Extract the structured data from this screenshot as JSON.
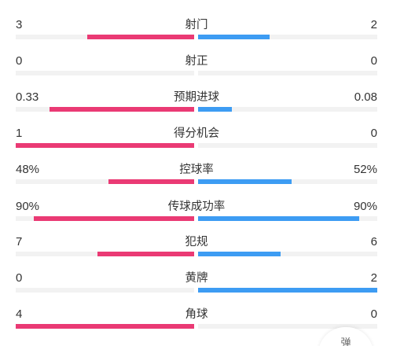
{
  "colors": {
    "home_bar": "#ea3a74",
    "away_bar": "#3d9cf3",
    "track": "#f2f2f2"
  },
  "stats": [
    {
      "label": "射门",
      "home": "3",
      "away": "2",
      "home_frac": 0.6,
      "away_frac": 0.4
    },
    {
      "label": "射正",
      "home": "0",
      "away": "0",
      "home_frac": 0.0,
      "away_frac": 0.0
    },
    {
      "label": "预期进球",
      "home": "0.33",
      "away": "0.08",
      "home_frac": 0.81,
      "away_frac": 0.19
    },
    {
      "label": "得分机会",
      "home": "1",
      "away": "0",
      "home_frac": 1.0,
      "away_frac": 0.0
    },
    {
      "label": "控球率",
      "home": "48%",
      "away": "52%",
      "home_frac": 0.48,
      "away_frac": 0.52
    },
    {
      "label": "传球成功率",
      "home": "90%",
      "away": "90%",
      "home_frac": 0.9,
      "away_frac": 0.9
    },
    {
      "label": "犯规",
      "home": "7",
      "away": "6",
      "home_frac": 0.54,
      "away_frac": 0.46
    },
    {
      "label": "黄牌",
      "home": "0",
      "away": "2",
      "home_frac": 0.0,
      "away_frac": 1.0
    },
    {
      "label": "角球",
      "home": "4",
      "away": "0",
      "home_frac": 1.0,
      "away_frac": 0.0
    }
  ],
  "collapse_button": {
    "label": "弹"
  }
}
